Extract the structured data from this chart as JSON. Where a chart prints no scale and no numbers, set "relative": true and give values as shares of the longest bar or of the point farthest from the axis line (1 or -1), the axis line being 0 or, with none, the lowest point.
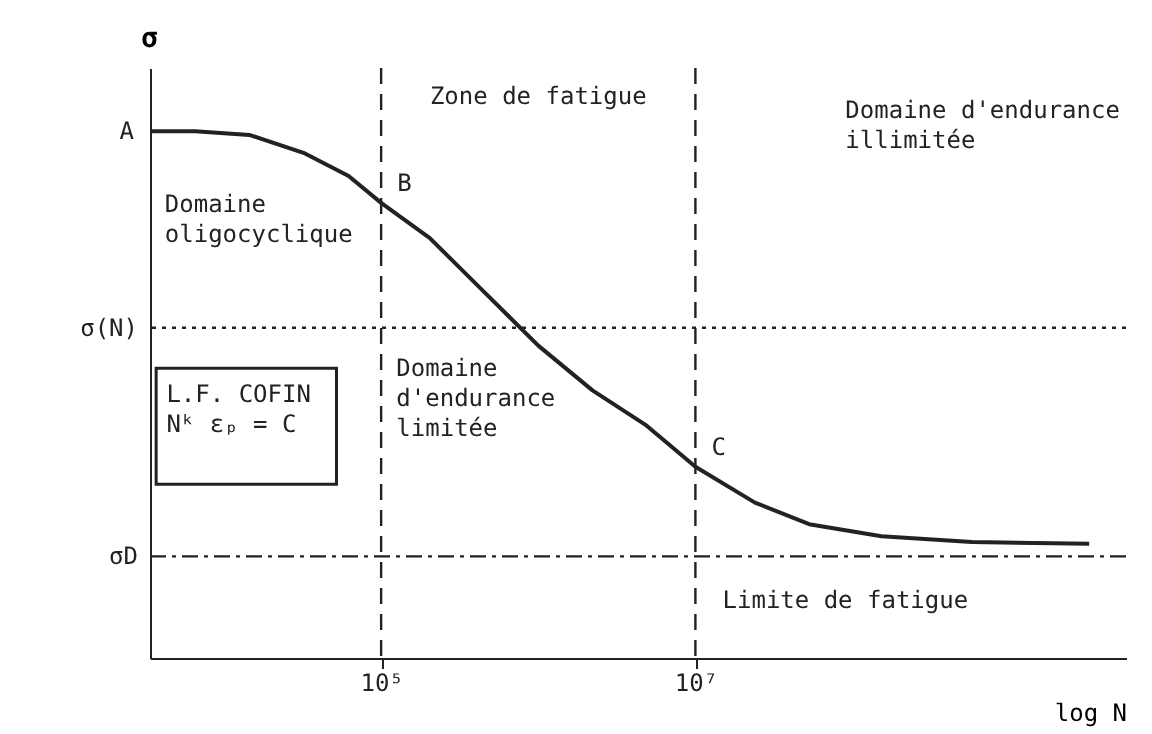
{
  "chart_data": {
    "type": "line",
    "relative": true,
    "xlabel": "log N",
    "ylabel": "σ",
    "log": "x",
    "grid": false,
    "marker": "none",
    "line_style": "solid",
    "xlim": [
      3381,
      5500000000
    ],
    "xticks": [
      {
        "value": 100000,
        "label": "10⁵"
      },
      {
        "value": 10000000,
        "label": "10⁷"
      }
    ],
    "x": [
      3381,
      6546,
      14490,
      32060,
      62100,
      100000,
      204200,
      451900,
      1000000,
      2213000,
      4898000,
      10000000,
      23930000,
      52970000,
      152800000,
      574100000,
      3206000000
    ],
    "series": [
      {
        "color": "#222222",
        "values": [
          1.0,
          1.0,
          0.993,
          0.959,
          0.915,
          0.864,
          0.797,
          0.695,
          0.593,
          0.508,
          0.441,
          0.363,
          0.295,
          0.254,
          0.231,
          0.22,
          0.217
        ]
      }
    ],
    "ref_lines": [
      {
        "axis": "x",
        "value": 100000,
        "line_style": "dashed",
        "color": "#222222"
      },
      {
        "axis": "x",
        "value": 10000000,
        "line_style": "dashed",
        "color": "#222222"
      },
      {
        "axis": "y",
        "value": 0.627,
        "label": "σ(N)",
        "line_style": "dotted",
        "color": "#222222"
      },
      {
        "axis": "y",
        "value": 0.193,
        "label": "σD",
        "line_style": "dashdot",
        "color": "#222222"
      }
    ],
    "annotations": [
      {
        "text": "A",
        "x": 3381,
        "y": 1.0
      },
      {
        "text": "B",
        "x": 100000,
        "y": 0.864
      },
      {
        "text": "C",
        "x": 10000000,
        "y": 0.363
      },
      "Zone de fatigue",
      "Domaine d'endurance\nillimitée",
      "Domaine\noligocyclique",
      "Domaine\nd'endurance\nlimitée",
      "Limite de fatigue",
      "L.F. COFIN\n\nNᵏ εₚ = C"
    ]
  }
}
